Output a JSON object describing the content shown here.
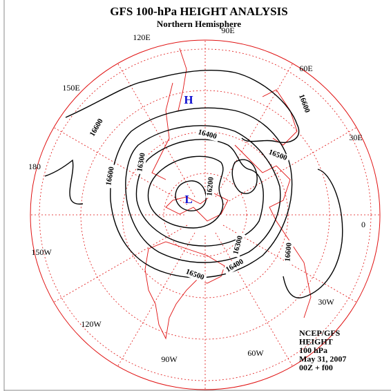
{
  "title": "GFS 100-hPa HEIGHT ANALYSIS",
  "subtitle": "Northern Hemisphere",
  "longitudes": [
    "90E",
    "120E",
    "60E",
    "150E",
    "30E",
    "180",
    "0",
    "150W",
    "30W",
    "120W",
    "90W",
    "60W"
  ],
  "contour_labels": [
    16600,
    16600,
    16400,
    16500,
    16300,
    16600,
    16200,
    16300,
    16400,
    16600,
    16500
  ],
  "centers": [
    "H",
    "L"
  ],
  "info": [
    "NCEP/GFS",
    "HEIGHT",
    "100 hPa",
    "May 31, 2007",
    "00Z + f00"
  ]
}
